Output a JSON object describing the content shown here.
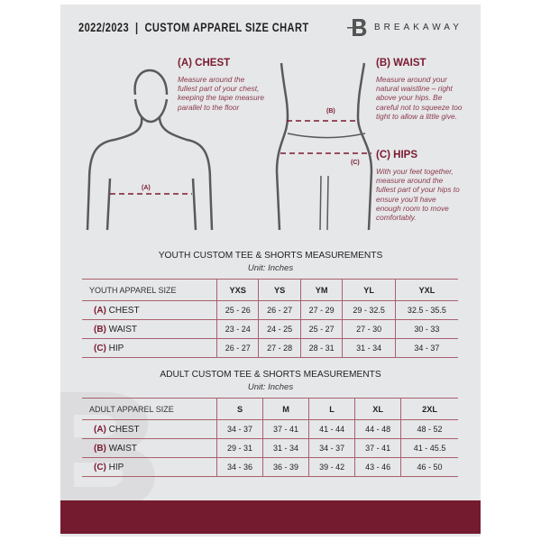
{
  "header": {
    "title": "2022/2023  |  CUSTOM APPAREL SIZE CHART",
    "brand": "BREAKAWAY",
    "logo_letter": "B"
  },
  "guide": {
    "chest": {
      "heading": "(A) CHEST",
      "marker": "(A)",
      "text": "Measure around the fullest part of your chest, keeping the tape measure parallel to the floor"
    },
    "waist": {
      "heading": "(B) WAIST",
      "marker": "(B)",
      "text": "Measure around your natural waistline – right above your hips. Be careful not to squeeze too tight to allow a little give."
    },
    "hips": {
      "heading": "(C) HIPS",
      "marker": "(C)",
      "text": "With your feet together, measure around the fullest part of your hips to ensure you'll have enough room to move comfortably."
    }
  },
  "youth": {
    "title": "YOUTH CUSTOM TEE & SHORTS MEASUREMENTS",
    "unit": "Unit: Inches",
    "header": "YOUTH APPAREL SIZE",
    "sizes": [
      "YXS",
      "YS",
      "YM",
      "YL",
      "YXL"
    ],
    "rows": [
      {
        "key": "(A)",
        "label": "CHEST",
        "values": [
          "25 - 26",
          "26 - 27",
          "27 - 29",
          "29 - 32.5",
          "32.5 - 35.5"
        ]
      },
      {
        "key": "(B)",
        "label": "WAIST",
        "values": [
          "23 - 24",
          "24 - 25",
          "25 - 27",
          "27 - 30",
          "30 - 33"
        ]
      },
      {
        "key": "(C)",
        "label": "HIP",
        "values": [
          "26 - 27",
          "27 - 28",
          "28 - 31",
          "31 - 34",
          "34 - 37"
        ]
      }
    ]
  },
  "adult": {
    "title": "ADULT CUSTOM TEE & SHORTS MEASUREMENTS",
    "unit": "Unit: Inches",
    "header": "ADULT APPAREL SIZE",
    "sizes": [
      "S",
      "M",
      "L",
      "XL",
      "2XL"
    ],
    "rows": [
      {
        "key": "(A)",
        "label": "CHEST",
        "values": [
          "34 - 37",
          "37 - 41",
          "41 - 44",
          "44 - 48",
          "48 - 52"
        ]
      },
      {
        "key": "(B)",
        "label": "WAIST",
        "values": [
          "29 - 31",
          "31 - 34",
          "34 - 37",
          "37 - 41",
          "41 - 45.5"
        ]
      },
      {
        "key": "(C)",
        "label": "HIP",
        "values": [
          "34 - 36",
          "36 - 39",
          "39 - 42",
          "43 - 46",
          "46 - 50"
        ]
      }
    ]
  },
  "colors": {
    "accent": "#741b30",
    "page": "#e6e7e9"
  }
}
